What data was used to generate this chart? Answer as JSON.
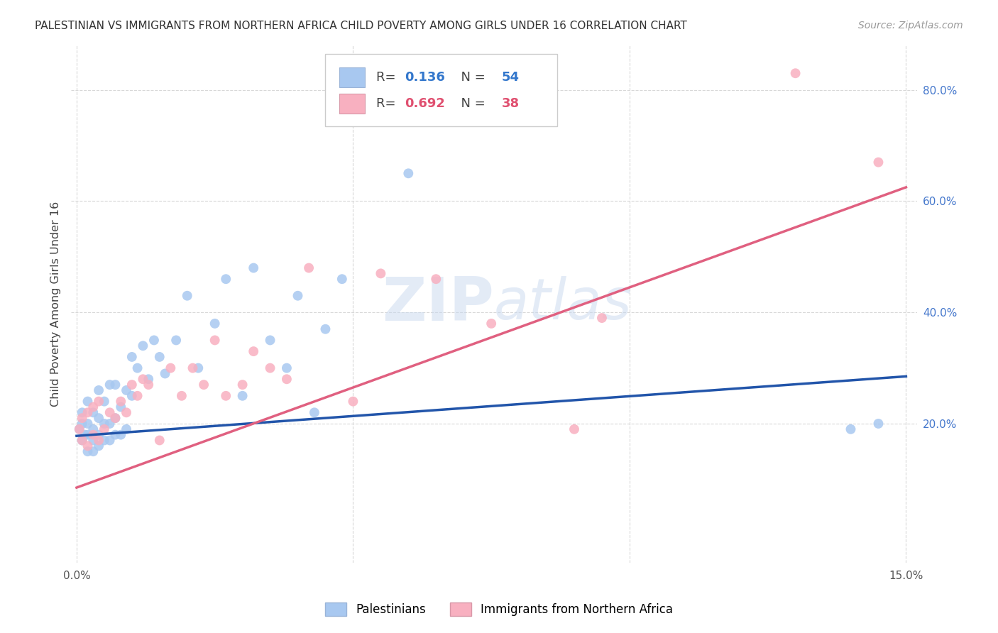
{
  "title": "PALESTINIAN VS IMMIGRANTS FROM NORTHERN AFRICA CHILD POVERTY AMONG GIRLS UNDER 16 CORRELATION CHART",
  "source": "Source: ZipAtlas.com",
  "ylabel": "Child Poverty Among Girls Under 16",
  "watermark": "ZIPatlas",
  "blue_label": "Palestinians",
  "pink_label": "Immigrants from Northern Africa",
  "blue_R": "0.136",
  "blue_N": "54",
  "pink_R": "0.692",
  "pink_N": "38",
  "xlim": [
    -0.001,
    0.152
  ],
  "ylim": [
    -0.05,
    0.88
  ],
  "ytick_positions": [
    0.2,
    0.4,
    0.6,
    0.8
  ],
  "ytick_labels": [
    "20.0%",
    "40.0%",
    "60.0%",
    "80.0%"
  ],
  "xtick_positions": [
    0.0,
    0.05,
    0.1,
    0.15
  ],
  "xtick_labels": [
    "0.0%",
    "",
    "",
    "15.0%"
  ],
  "blue_color": "#a8c8f0",
  "pink_color": "#f8b0c0",
  "blue_line_color": "#2255aa",
  "pink_line_color": "#e06080",
  "background_color": "#ffffff",
  "grid_color": "#d8d8d8",
  "blue_points_x": [
    0.0005,
    0.001,
    0.001,
    0.001,
    0.0015,
    0.002,
    0.002,
    0.002,
    0.002,
    0.003,
    0.003,
    0.003,
    0.003,
    0.004,
    0.004,
    0.004,
    0.004,
    0.005,
    0.005,
    0.005,
    0.006,
    0.006,
    0.006,
    0.007,
    0.007,
    0.007,
    0.008,
    0.008,
    0.009,
    0.009,
    0.01,
    0.01,
    0.011,
    0.012,
    0.013,
    0.014,
    0.015,
    0.016,
    0.018,
    0.02,
    0.022,
    0.025,
    0.027,
    0.03,
    0.032,
    0.035,
    0.038,
    0.04,
    0.043,
    0.045,
    0.048,
    0.06,
    0.14,
    0.145
  ],
  "blue_points_y": [
    0.19,
    0.17,
    0.2,
    0.22,
    0.18,
    0.15,
    0.18,
    0.2,
    0.24,
    0.15,
    0.17,
    0.19,
    0.22,
    0.16,
    0.18,
    0.21,
    0.26,
    0.17,
    0.2,
    0.24,
    0.17,
    0.2,
    0.27,
    0.18,
    0.21,
    0.27,
    0.18,
    0.23,
    0.19,
    0.26,
    0.25,
    0.32,
    0.3,
    0.34,
    0.28,
    0.35,
    0.32,
    0.29,
    0.35,
    0.43,
    0.3,
    0.38,
    0.46,
    0.25,
    0.48,
    0.35,
    0.3,
    0.43,
    0.22,
    0.37,
    0.46,
    0.65,
    0.19,
    0.2
  ],
  "pink_points_x": [
    0.0005,
    0.001,
    0.001,
    0.002,
    0.002,
    0.003,
    0.003,
    0.004,
    0.004,
    0.005,
    0.006,
    0.007,
    0.008,
    0.009,
    0.01,
    0.011,
    0.012,
    0.013,
    0.015,
    0.017,
    0.019,
    0.021,
    0.023,
    0.025,
    0.027,
    0.03,
    0.032,
    0.035,
    0.038,
    0.042,
    0.05,
    0.055,
    0.065,
    0.075,
    0.09,
    0.095,
    0.13,
    0.145
  ],
  "pink_points_y": [
    0.19,
    0.17,
    0.21,
    0.16,
    0.22,
    0.18,
    0.23,
    0.17,
    0.24,
    0.19,
    0.22,
    0.21,
    0.24,
    0.22,
    0.27,
    0.25,
    0.28,
    0.27,
    0.17,
    0.3,
    0.25,
    0.3,
    0.27,
    0.35,
    0.25,
    0.27,
    0.33,
    0.3,
    0.28,
    0.48,
    0.24,
    0.47,
    0.46,
    0.38,
    0.19,
    0.39,
    0.83,
    0.67
  ],
  "blue_trend_x": [
    0.0,
    0.15
  ],
  "blue_trend_y": [
    0.178,
    0.285
  ],
  "pink_trend_x": [
    0.0,
    0.15
  ],
  "pink_trend_y": [
    0.085,
    0.625
  ]
}
